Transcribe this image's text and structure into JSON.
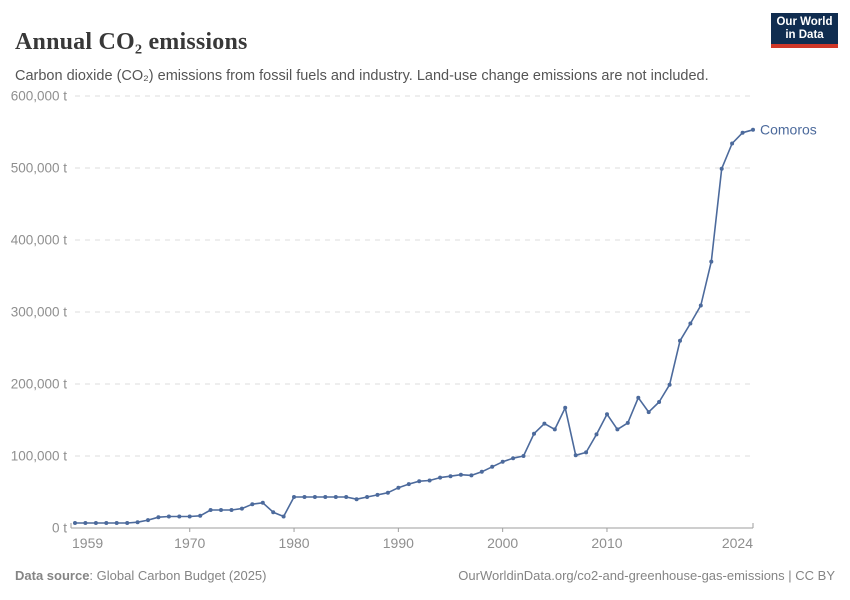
{
  "header": {
    "title": "Annual CO₂ emissions",
    "subtitle": "Carbon dioxide (CO₂) emissions from fossil fuels and industry. Land-use change emissions are not included.",
    "logo": {
      "line1": "Our World",
      "line2": "in Data"
    }
  },
  "footer": {
    "source_label": "Data source",
    "source_rest": ": Global Carbon Budget (2025)",
    "link_text": "OurWorldinData.org/co2-and-greenhouse-gas-emissions | CC BY"
  },
  "chart_data": {
    "type": "line",
    "title": "Annual CO₂ emissions",
    "unit": "t",
    "entity": "Comoros",
    "series_label": "Comoros",
    "line_color": "#4C6A9C",
    "grid_color": "#dddddd",
    "axis_color": "#9e9e9e",
    "tick_text_color": "#8f8f8f",
    "grid": "horizontal-dashed",
    "legend_position": "end-of-line-label",
    "xlabel": "",
    "ylabel": "",
    "xlim": [
      1959,
      2024
    ],
    "ylim": [
      0,
      600000
    ],
    "yticks": [
      {
        "value": 0,
        "label": "0 t"
      },
      {
        "value": 100000,
        "label": "100,000 t"
      },
      {
        "value": 200000,
        "label": "200,000 t"
      },
      {
        "value": 300000,
        "label": "300,000 t"
      },
      {
        "value": 400000,
        "label": "400,000 t"
      },
      {
        "value": 500000,
        "label": "500,000 t"
      },
      {
        "value": 600000,
        "label": "600,000 t"
      }
    ],
    "xticks": [
      {
        "year": 1959,
        "label": "1959"
      },
      {
        "year": 1970,
        "label": "1970"
      },
      {
        "year": 1980,
        "label": "1980"
      },
      {
        "year": 1990,
        "label": "1990"
      },
      {
        "year": 2000,
        "label": "2000"
      },
      {
        "year": 2010,
        "label": "2010"
      },
      {
        "year": 2024,
        "label": "2024"
      }
    ],
    "x": [
      1959,
      1960,
      1961,
      1962,
      1963,
      1964,
      1965,
      1966,
      1967,
      1968,
      1969,
      1970,
      1971,
      1972,
      1973,
      1974,
      1975,
      1976,
      1977,
      1978,
      1979,
      1980,
      1981,
      1982,
      1983,
      1984,
      1985,
      1986,
      1987,
      1988,
      1989,
      1990,
      1991,
      1992,
      1993,
      1994,
      1995,
      1996,
      1997,
      1998,
      1999,
      2000,
      2001,
      2002,
      2003,
      2004,
      2005,
      2006,
      2007,
      2008,
      2009,
      2010,
      2011,
      2012,
      2013,
      2014,
      2015,
      2016,
      2017,
      2018,
      2019,
      2020,
      2021,
      2022,
      2023,
      2024
    ],
    "values": [
      7000,
      7000,
      7000,
      7000,
      7000,
      7000,
      8000,
      11000,
      15000,
      16000,
      16000,
      16000,
      17000,
      25000,
      25000,
      25000,
      27000,
      33000,
      35000,
      22000,
      16000,
      43000,
      43000,
      43000,
      43000,
      43000,
      43000,
      40000,
      43000,
      46000,
      49000,
      56000,
      61000,
      65000,
      66000,
      70000,
      72000,
      74000,
      73000,
      78000,
      85000,
      92000,
      97000,
      100000,
      131000,
      145000,
      137000,
      167000,
      101000,
      105000,
      130000,
      158000,
      137000,
      146000,
      181000,
      161000,
      175000,
      199000,
      260000,
      284000,
      309000,
      370000,
      499000,
      534000,
      549000,
      553000
    ]
  }
}
